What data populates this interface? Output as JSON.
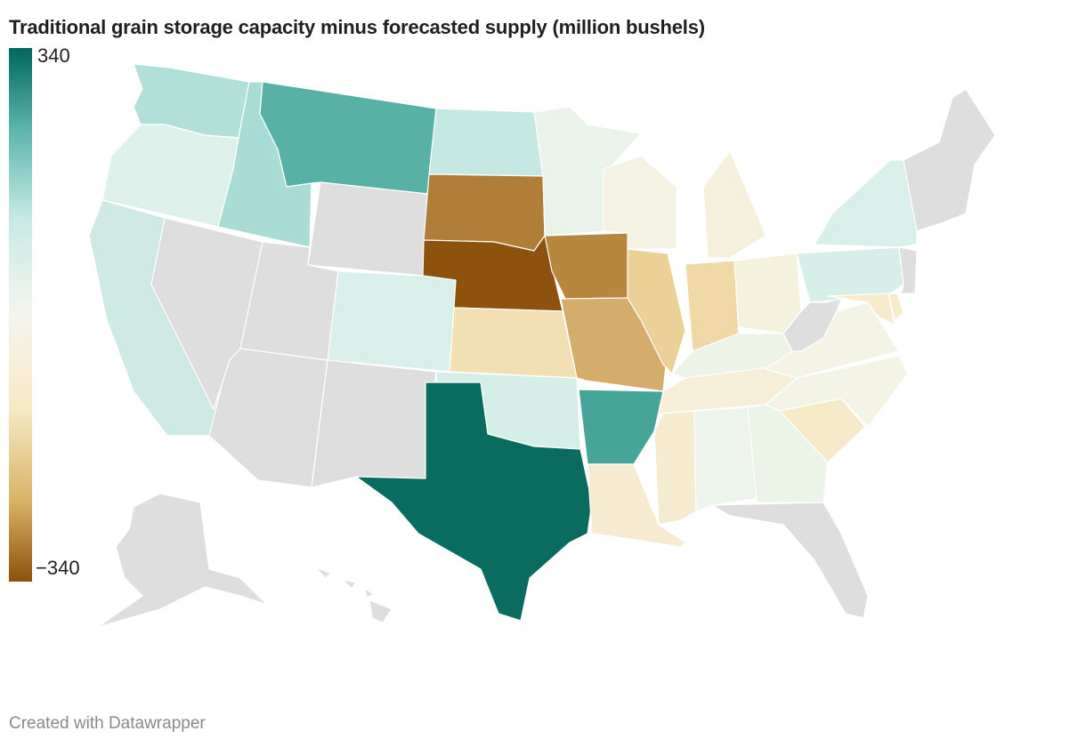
{
  "title": "Traditional grain storage capacity minus forecasted supply (million bushels)",
  "legend": {
    "max_label": "340",
    "min_label": "−340",
    "max_value": 340,
    "min_value": -340
  },
  "colors": {
    "no_data": "#dedede",
    "scale": [
      "#8c510a",
      "#bf812d",
      "#dfc27d",
      "#f6e8c3",
      "#f5f5f0",
      "#c7eae5",
      "#80cdc1",
      "#35978f",
      "#01665e"
    ]
  },
  "states": [
    {
      "id": "WA",
      "color": "#b2e0d9"
    },
    {
      "id": "OR",
      "color": "#def0ea"
    },
    {
      "id": "CA",
      "color": "#cfeae4"
    },
    {
      "id": "ID",
      "color": "#a9dcd4"
    },
    {
      "id": "NV",
      "color": "#dedede"
    },
    {
      "id": "MT",
      "color": "#57b1a6"
    },
    {
      "id": "WY",
      "color": "#dedede"
    },
    {
      "id": "UT",
      "color": "#dedede"
    },
    {
      "id": "CO",
      "color": "#d9efe9"
    },
    {
      "id": "AZ",
      "color": "#dedede"
    },
    {
      "id": "NM",
      "color": "#dedede"
    },
    {
      "id": "ND",
      "color": "#c5e8e2"
    },
    {
      "id": "SD",
      "color": "#b07e37"
    },
    {
      "id": "NE",
      "color": "#8e520f"
    },
    {
      "id": "KS",
      "color": "#f2dfb4"
    },
    {
      "id": "OK",
      "color": "#d6eee8"
    },
    {
      "id": "TX",
      "color": "#0a6b61"
    },
    {
      "id": "MN",
      "color": "#e9f3e9"
    },
    {
      "id": "IA",
      "color": "#b7873e"
    },
    {
      "id": "MO",
      "color": "#d4ad6a"
    },
    {
      "id": "AR",
      "color": "#47a499"
    },
    {
      "id": "LA",
      "color": "#f6ead0"
    },
    {
      "id": "WI",
      "color": "#f4f2e2"
    },
    {
      "id": "IL",
      "color": "#ebd198"
    },
    {
      "id": "MI",
      "color": "#f4f0dc"
    },
    {
      "id": "IN",
      "color": "#f0d9a6"
    },
    {
      "id": "OH",
      "color": "#f4f1dc"
    },
    {
      "id": "KY",
      "color": "#edf3e6"
    },
    {
      "id": "TN",
      "color": "#f6eed6"
    },
    {
      "id": "MS",
      "color": "#f5eccf"
    },
    {
      "id": "AL",
      "color": "#ecf4ec"
    },
    {
      "id": "GA",
      "color": "#ecf3e7"
    },
    {
      "id": "FL",
      "color": "#dedede"
    },
    {
      "id": "SC",
      "color": "#f6e9c8"
    },
    {
      "id": "NC",
      "color": "#f4f4e6"
    },
    {
      "id": "VA",
      "color": "#f4f4e6"
    },
    {
      "id": "WV",
      "color": "#dedede"
    },
    {
      "id": "PA",
      "color": "#d6eee8"
    },
    {
      "id": "NY",
      "color": "#d9f0ea"
    },
    {
      "id": "MD",
      "color": "#f7ebcb"
    },
    {
      "id": "DE",
      "color": "#f7ebcb"
    },
    {
      "id": "NJ",
      "color": "#dedede"
    },
    {
      "id": "NE-states",
      "color": "#dedede"
    },
    {
      "id": "AK",
      "color": "#dedede"
    },
    {
      "id": "HI",
      "color": "#dedede"
    }
  ],
  "footer": "Created with Datawrapper"
}
